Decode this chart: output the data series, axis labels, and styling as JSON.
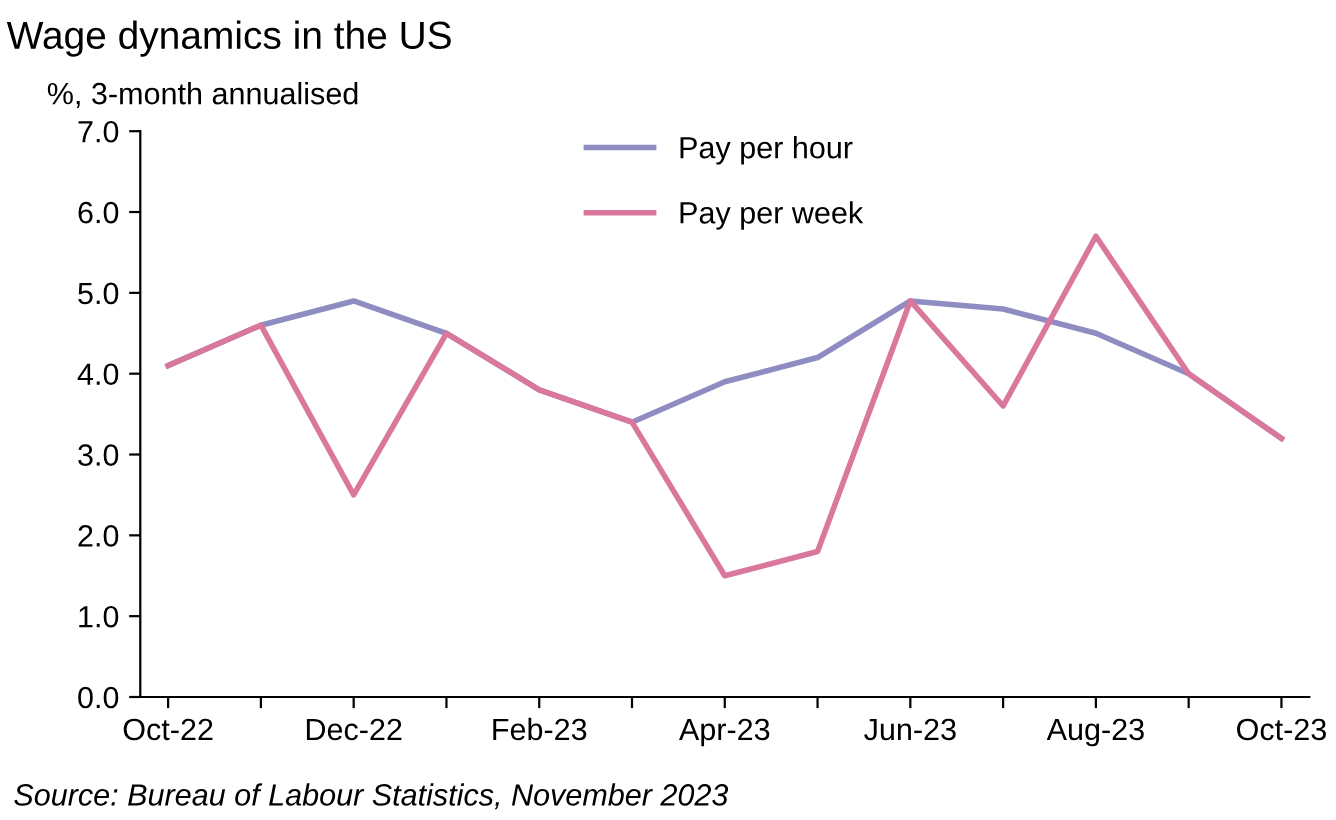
{
  "chart_data": {
    "type": "line",
    "title": "Wage dynamics in the US",
    "ylabel": "%, 3-month annualised",
    "categories": [
      "Oct-22",
      null,
      "Dec-22",
      null,
      "Feb-23",
      null,
      "Apr-23",
      null,
      "Jun-23",
      null,
      "Aug-23",
      null,
      "Oct-23"
    ],
    "series": [
      {
        "name": "Pay per hour",
        "color": "#8e8cc0",
        "values": [
          4.1,
          4.6,
          4.9,
          4.5,
          3.8,
          3.4,
          3.9,
          4.2,
          4.9,
          4.8,
          4.5,
          4.0,
          3.2
        ]
      },
      {
        "name": "Pay per week",
        "color": "#d9789c",
        "values": [
          4.1,
          4.6,
          2.5,
          4.5,
          3.8,
          3.4,
          1.5,
          1.8,
          4.9,
          3.6,
          5.7,
          4.0,
          3.2
        ]
      }
    ],
    "ylim": [
      0,
      7
    ],
    "yticks": [
      {
        "value": 0,
        "label": "0.0"
      },
      {
        "value": 1,
        "label": "1.0"
      },
      {
        "value": 2,
        "label": "2.0"
      },
      {
        "value": 3,
        "label": "3.0"
      },
      {
        "value": 4,
        "label": "4.0"
      },
      {
        "value": 5,
        "label": "5.0"
      },
      {
        "value": 6,
        "label": "6.0"
      },
      {
        "value": 7,
        "label": "7.0"
      }
    ],
    "grid": false,
    "legend": "top",
    "marker": "none",
    "line_style": "solid",
    "annotations": [
      "Source: Bureau of Labour Statistics, November 2023"
    ]
  }
}
